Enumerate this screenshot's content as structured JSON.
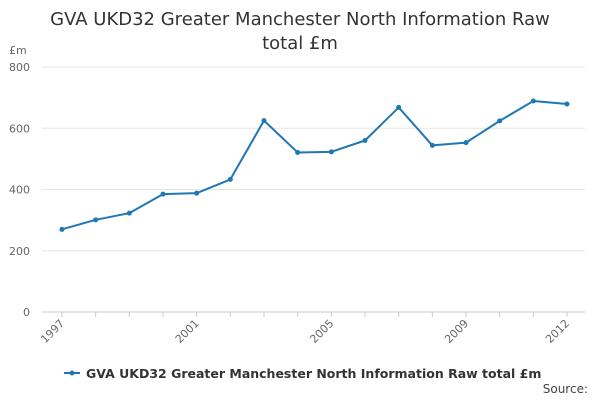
{
  "chart_data": {
    "type": "line",
    "title": "GVA UKD32 Greater Manchester North Information Raw total £m",
    "unit": "£m",
    "xlabel": "",
    "ylabel": "£m",
    "x": [
      1997,
      1998,
      1999,
      2000,
      2001,
      2002,
      2003,
      2004,
      2005,
      2006,
      2007,
      2008,
      2009,
      2010,
      2011,
      2012
    ],
    "x_tick_labels": [
      "1997",
      "2001",
      "2005",
      "2009",
      "2012"
    ],
    "y_tick_labels": [
      "0",
      "200",
      "400",
      "600",
      "800"
    ],
    "ylim": [
      0,
      800
    ],
    "grid": true,
    "legend_position": "bottom",
    "series": [
      {
        "name": "GVA UKD32 Greater Manchester North Information Raw total £m",
        "color": "#1f77b4",
        "values": [
          270,
          301,
          323,
          385,
          388,
          433,
          625,
          521,
          523,
          560,
          668,
          544,
          553,
          624,
          689,
          679
        ]
      }
    ]
  },
  "source_label": "Source:"
}
